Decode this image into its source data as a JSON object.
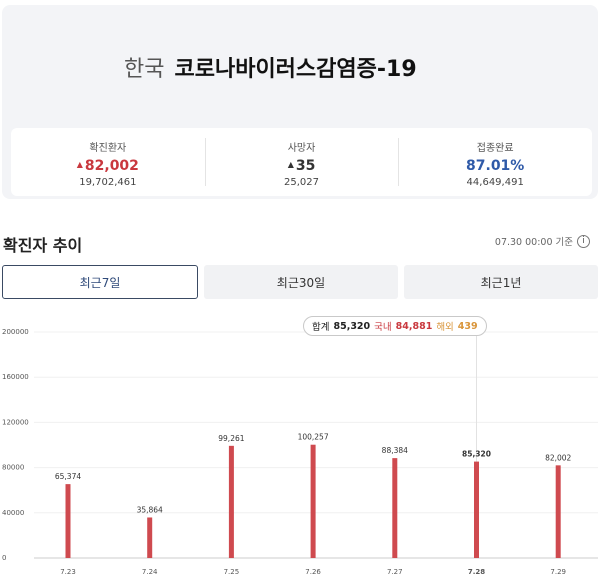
{
  "header": {
    "country": "한국",
    "disease": "코로나바이러스감염증-19"
  },
  "stats": [
    {
      "label": "확진환자",
      "value": "82,002",
      "sub": "19,702,461",
      "color": "#c9383e"
    },
    {
      "label": "사망자",
      "value": "35",
      "sub": "25,027",
      "color": "#333333"
    },
    {
      "label": "접종완료",
      "value": "87.01%",
      "sub": "44,649,491",
      "color": "#2f5aa8"
    }
  ],
  "section": {
    "title": "확진자 추이",
    "ref_time": "07.30 00:00 기준",
    "info_icon": "info-icon"
  },
  "tabs": [
    {
      "label": "최근7일",
      "active": true
    },
    {
      "label": "최근30일",
      "active": false
    },
    {
      "label": "최근1년",
      "active": false
    }
  ],
  "tooltip": {
    "total_label": "합계",
    "total_value": "85,320",
    "domestic_label": "국내",
    "domestic_value": "84,881",
    "overseas_label": "해외",
    "overseas_value": "439"
  },
  "chart_data": {
    "type": "bar",
    "categories": [
      "7.23",
      "7.24",
      "7.25",
      "7.26",
      "7.27",
      "7.28",
      "7.29"
    ],
    "values": [
      65374,
      35864,
      99261,
      100257,
      88384,
      85320,
      82002
    ],
    "value_labels": [
      "65,374",
      "35,864",
      "99,261",
      "100,257",
      "88,384",
      "85,320",
      "82,002"
    ],
    "y_ticks": [
      0,
      40000,
      80000,
      120000,
      160000,
      200000
    ],
    "ylim": [
      0,
      200000
    ],
    "highlight_index": 5,
    "bar_color": "#cf4a4f"
  }
}
